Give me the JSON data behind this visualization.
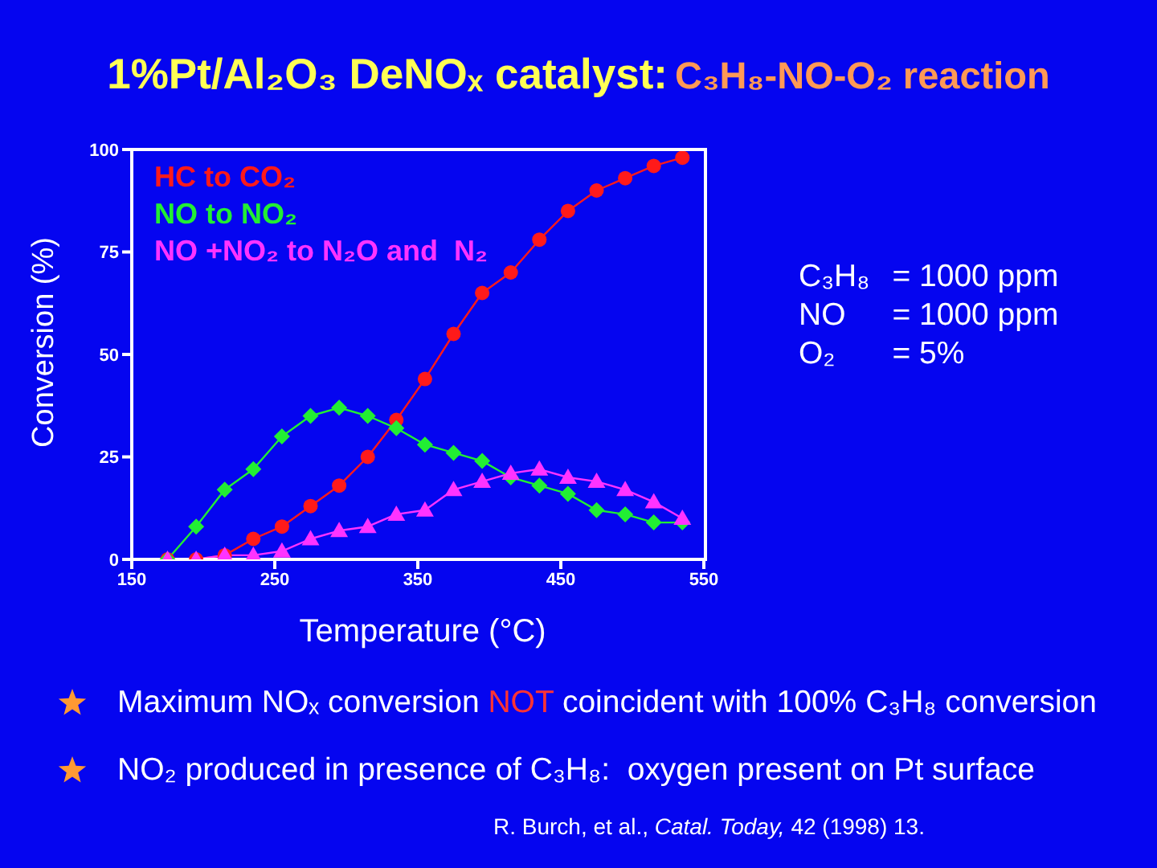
{
  "chart_data": {
    "type": "line",
    "title": "1%Pt/Al₂O₃ DeNOₓ catalyst:",
    "subtitle": "C₃H₈-NO-O₂ reaction",
    "xlabel": "Temperature (°C)",
    "ylabel": "Conversion (%)",
    "x": [
      175,
      195,
      215,
      235,
      255,
      275,
      295,
      315,
      335,
      355,
      375,
      395,
      415,
      435,
      455,
      475,
      495,
      515,
      535
    ],
    "series": [
      {
        "name": "HC to CO₂",
        "color": "#ff1a1a",
        "marker": "circle",
        "values": [
          0,
          0,
          1,
          5,
          8,
          13,
          18,
          25,
          34,
          44,
          55,
          65,
          70,
          78,
          85,
          90,
          93,
          96,
          98
        ]
      },
      {
        "name": "NO to NO₂",
        "color": "#22ee33",
        "marker": "diamond",
        "values": [
          0,
          8,
          17,
          22,
          30,
          35,
          37,
          35,
          32,
          28,
          26,
          24,
          20,
          18,
          16,
          12,
          11,
          9,
          9
        ]
      },
      {
        "name": "NO +NO₂ to N₂O and  N₂",
        "color": "#ff33ff",
        "marker": "triangle",
        "values": [
          0,
          0,
          1,
          1,
          2,
          5,
          7,
          8,
          11,
          12,
          17,
          19,
          21,
          22,
          20,
          19,
          17,
          14,
          10
        ]
      }
    ],
    "xlim": [
      150,
      550
    ],
    "xticks": [
      150,
      250,
      350,
      450,
      550
    ],
    "ylim": [
      0,
      100
    ],
    "yticks": [
      0,
      25,
      50,
      75,
      100
    ],
    "legend": "top left",
    "annotations": [
      "C₃H₈",
      "= 1000 ppm",
      "NO",
      "= 1000 ppm",
      "O₂",
      "= 5%",
      "Maximum NOₓ conversion",
      "NOT",
      "coincident with 100% C₃H₈ conversion",
      "NO₂ produced in presence of C₃H₈:  oxygen present on Pt surface",
      "R. Burch, et al.,",
      "Catal. Today,",
      "42 (1998) 13."
    ]
  }
}
